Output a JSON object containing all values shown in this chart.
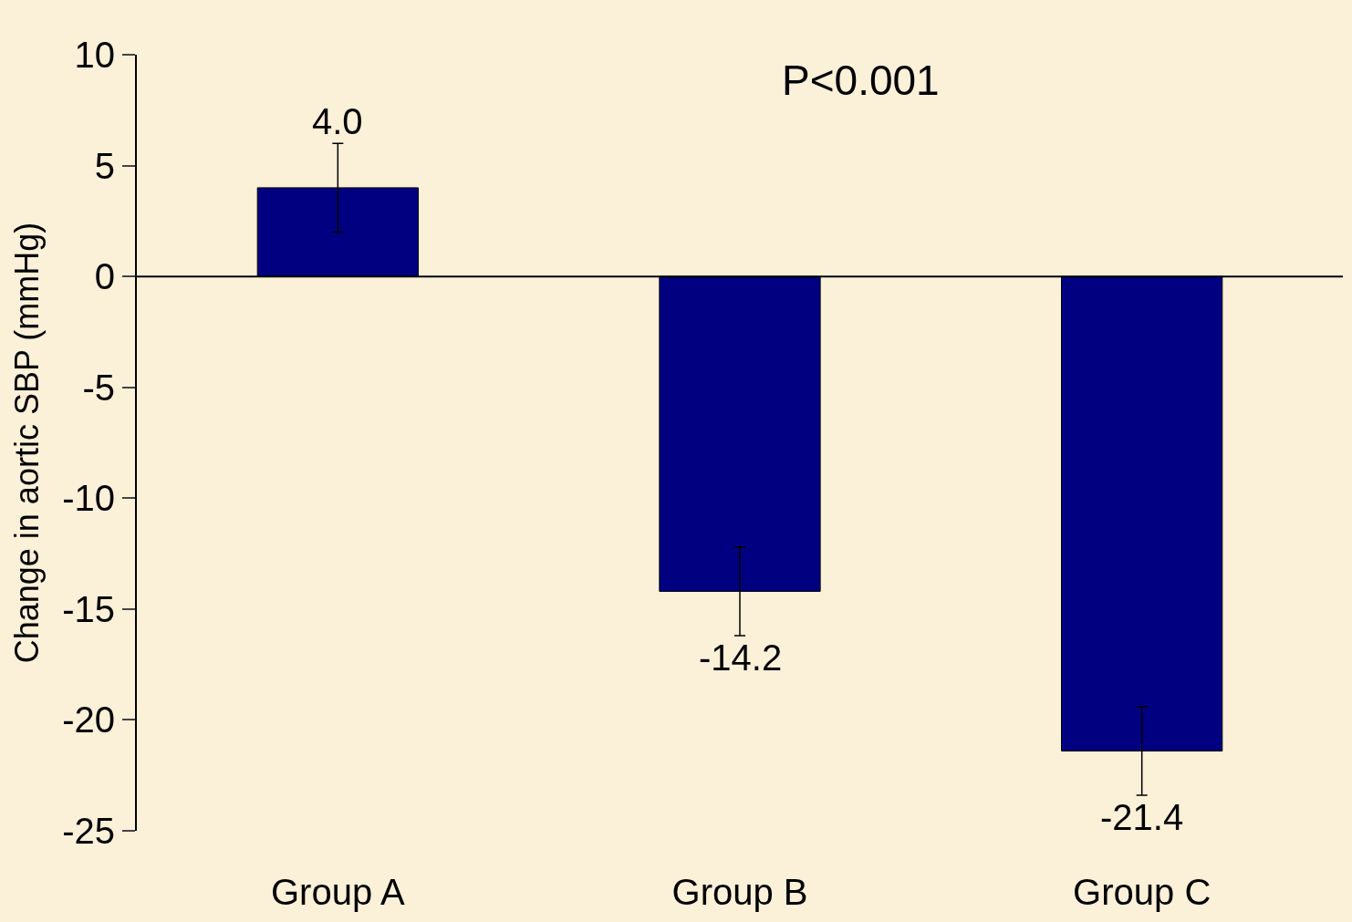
{
  "chart_data": {
    "type": "bar",
    "ylabel": "Change in aortic SBP (mmHg)",
    "categories": [
      "Group A",
      "Group B",
      "Group C"
    ],
    "values": [
      4.0,
      -14.2,
      -21.4
    ],
    "errors": [
      2.0,
      2.0,
      2.0
    ],
    "color": "#000080",
    "ylim": [
      -25,
      10
    ],
    "yticks": [
      -25,
      -20,
      -15,
      -10,
      -5,
      0,
      5,
      10
    ],
    "value_labels": [
      "4.0",
      "-14.2",
      "-21.4"
    ],
    "legend": false,
    "annotations": [
      "P<0.001"
    ]
  }
}
